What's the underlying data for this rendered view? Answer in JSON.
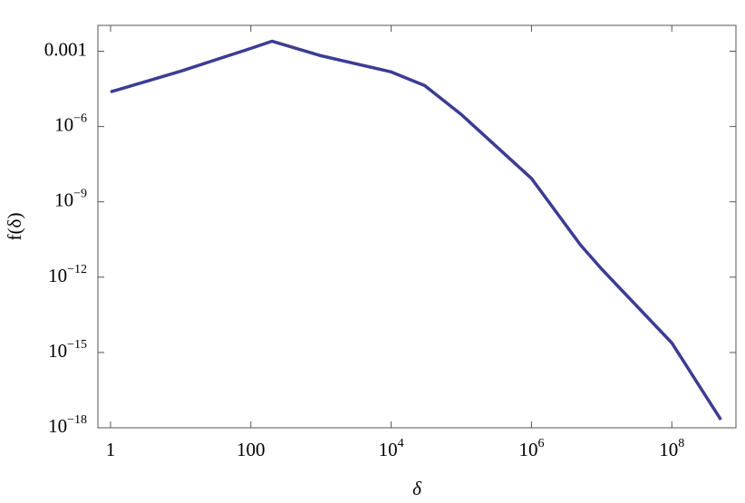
{
  "chart_data": {
    "type": "line",
    "x_label": "δ",
    "y_label": "f(δ)",
    "log_x": true,
    "log_y": true,
    "x": [
      1,
      10,
      100,
      200,
      1000,
      10000,
      30000,
      100000,
      1000000,
      5000000,
      10000000,
      100000000,
      500000000
    ],
    "series": [
      {
        "color": "#3c3c94",
        "values": [
          2.4e-05,
          0.00016,
          0.0013,
          0.0025,
          0.00066,
          0.00015,
          4.3e-05,
          3e-06,
          8.5e-09,
          1.9e-11,
          2.1e-12,
          2.4e-15,
          2.1e-18
        ]
      }
    ],
    "xlim": [
      0.66,
      820000000
    ],
    "ylim": [
      1e-18,
      0.0107
    ],
    "xticks": [
      1,
      100,
      {
        "value": 10000,
        "label": "104"
      },
      {
        "value": 1000000,
        "label": "106"
      },
      {
        "value": 100000000,
        "label": "108"
      }
    ],
    "yticks": [
      0.001,
      {
        "value": 1e-06,
        "label": "10−6"
      },
      {
        "value": 1e-09,
        "label": "10−9"
      },
      {
        "value": 1e-12,
        "label": "10−12"
      },
      {
        "value": 1e-15,
        "label": "10−15"
      },
      {
        "value": 1e-18,
        "label": "10−18"
      }
    ]
  }
}
